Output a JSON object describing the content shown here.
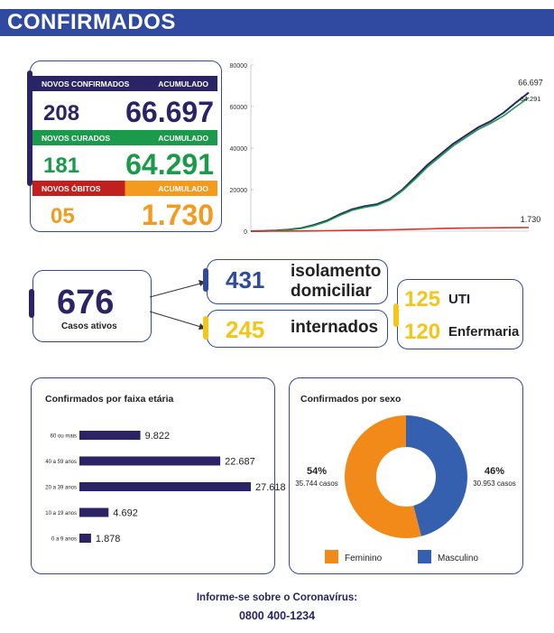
{
  "header": {
    "title": "CONFIRMADOS"
  },
  "stats": {
    "confirmados": {
      "label": "NOVOS CONFIRMADOS",
      "acc_label": "ACUMULADO",
      "new": "208",
      "total": "66.697",
      "color": "#2a2466",
      "bar": "#2f4aa0"
    },
    "curados": {
      "label": "NOVOS CURADOS",
      "acc_label": "ACUMULADO",
      "new": "181",
      "total": "64.291",
      "color": "#1a9a4a",
      "bar": "#1a9a4a"
    },
    "obitos": {
      "label": "NOVOS ÓBITOS",
      "acc_label": "ACUMULADO",
      "new": "05",
      "total": "1.730",
      "color": "#f39a1f",
      "bar_left": "#c0201e",
      "bar_right": "#f39a1f"
    }
  },
  "chart_data": [
    {
      "type": "line",
      "yticks": [
        "80000",
        "60000",
        "40000",
        "20000",
        "0"
      ],
      "ylim": [
        0,
        80000
      ],
      "series": [
        {
          "name": "",
          "color": "#2a2466",
          "end_label": "66.697",
          "values": [
            0,
            100,
            300,
            800,
            1500,
            3000,
            5000,
            8000,
            10500,
            12000,
            13000,
            15500,
            20000,
            26000,
            32000,
            37000,
            42000,
            46000,
            50000,
            53000,
            57000,
            62000,
            66697
          ]
        },
        {
          "name": "",
          "color": "#1a9a4a",
          "end_label": "64.291",
          "values": [
            0,
            80,
            250,
            700,
            1300,
            2700,
            4600,
            7500,
            10000,
            11500,
            12500,
            15000,
            19500,
            25000,
            31000,
            36000,
            41000,
            45000,
            49000,
            52000,
            55500,
            60000,
            64291
          ]
        },
        {
          "name": "",
          "color": "#d9342b",
          "end_label": "1.730",
          "values": [
            0,
            5,
            15,
            40,
            70,
            120,
            200,
            300,
            400,
            480,
            550,
            650,
            800,
            950,
            1100,
            1250,
            1380,
            1480,
            1560,
            1620,
            1670,
            1700,
            1730
          ]
        }
      ]
    },
    {
      "type": "bar",
      "title": "Confirmados por faixa etária",
      "categories": [
        "60 ou mais",
        "40 a 59 anos",
        "20 a 39 anos",
        "10 a 19 anos",
        "0 a 9 anos"
      ],
      "values": [
        9822,
        22687,
        27618,
        4692,
        1878
      ],
      "value_labels": [
        "9.822",
        "22.687",
        "27.618",
        "4.692",
        "1.878"
      ],
      "color": "#2a2466"
    },
    {
      "type": "pie",
      "title": "Confirmados por sexo",
      "slices": [
        {
          "name": "Feminino",
          "percent": 54,
          "percent_label": "54%",
          "cases_label": "35.744 casos",
          "color": "#f28a1a"
        },
        {
          "name": "Masculino",
          "percent": 46,
          "percent_label": "46%",
          "cases_label": "30.953 casos",
          "color": "#3560b0"
        }
      ]
    }
  ],
  "ativos": {
    "number": "676",
    "label": "Casos ativos"
  },
  "isolamento": {
    "number": "431",
    "label_line1": "isolamento",
    "label_line2": "domiciliar"
  },
  "internados": {
    "number": "245",
    "label": "internados"
  },
  "uti": {
    "number": "125",
    "label": "UTI"
  },
  "enfermaria": {
    "number": "120",
    "label": "Enfermaria"
  },
  "footer": {
    "line1": "Informe-se sobre o Coronavírus:",
    "line2": "0800 400-1234"
  },
  "colors": {
    "navy": "#2a2466",
    "blue": "#2f4aa0",
    "green": "#1a9a4a",
    "orange": "#f39a1f",
    "yellow": "#f5c518",
    "red": "#c0201e"
  }
}
